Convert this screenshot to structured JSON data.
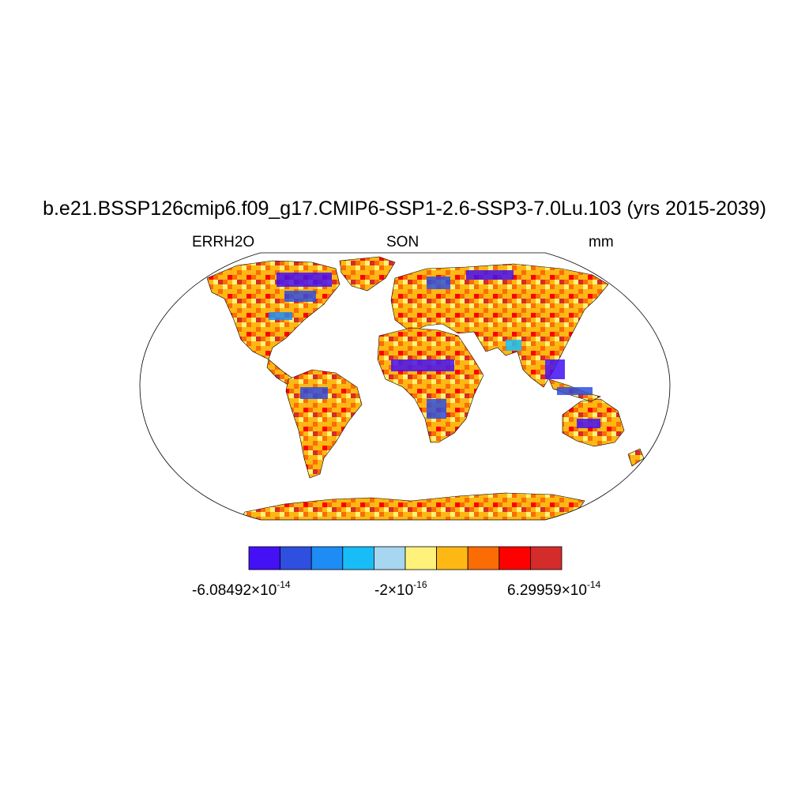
{
  "title": "b.e21.BSSP126cmip6.f09_g17.CMIP6-SSP1-2.6-SSP3-7.0Lu.103 (yrs 2015-2039)",
  "left_string": "ERRH2O",
  "center_string": "SON",
  "right_string": "mm",
  "colorbar": {
    "colors": [
      "#4410f5",
      "#2e4fe0",
      "#1e8cf5",
      "#18bdf7",
      "#a6d6f0",
      "#fff27a",
      "#fdb813",
      "#fb6c05",
      "#ff0000",
      "#d42b2b"
    ],
    "labels": {
      "left": {
        "mantissa": "-6.08492",
        "times": "×",
        "base": "10",
        "exponent": "-14"
      },
      "center": {
        "mantissa": "-2",
        "times": "×",
        "base": "10",
        "exponent": "-16"
      },
      "right": {
        "mantissa": "6.29959",
        "times": "×",
        "base": "10",
        "exponent": "-14"
      }
    }
  },
  "map": {
    "projection": "Robinson",
    "ocean_fill": "#ffffff",
    "coastline_color": "#000000",
    "dominant_land_color": "#fdb813"
  }
}
